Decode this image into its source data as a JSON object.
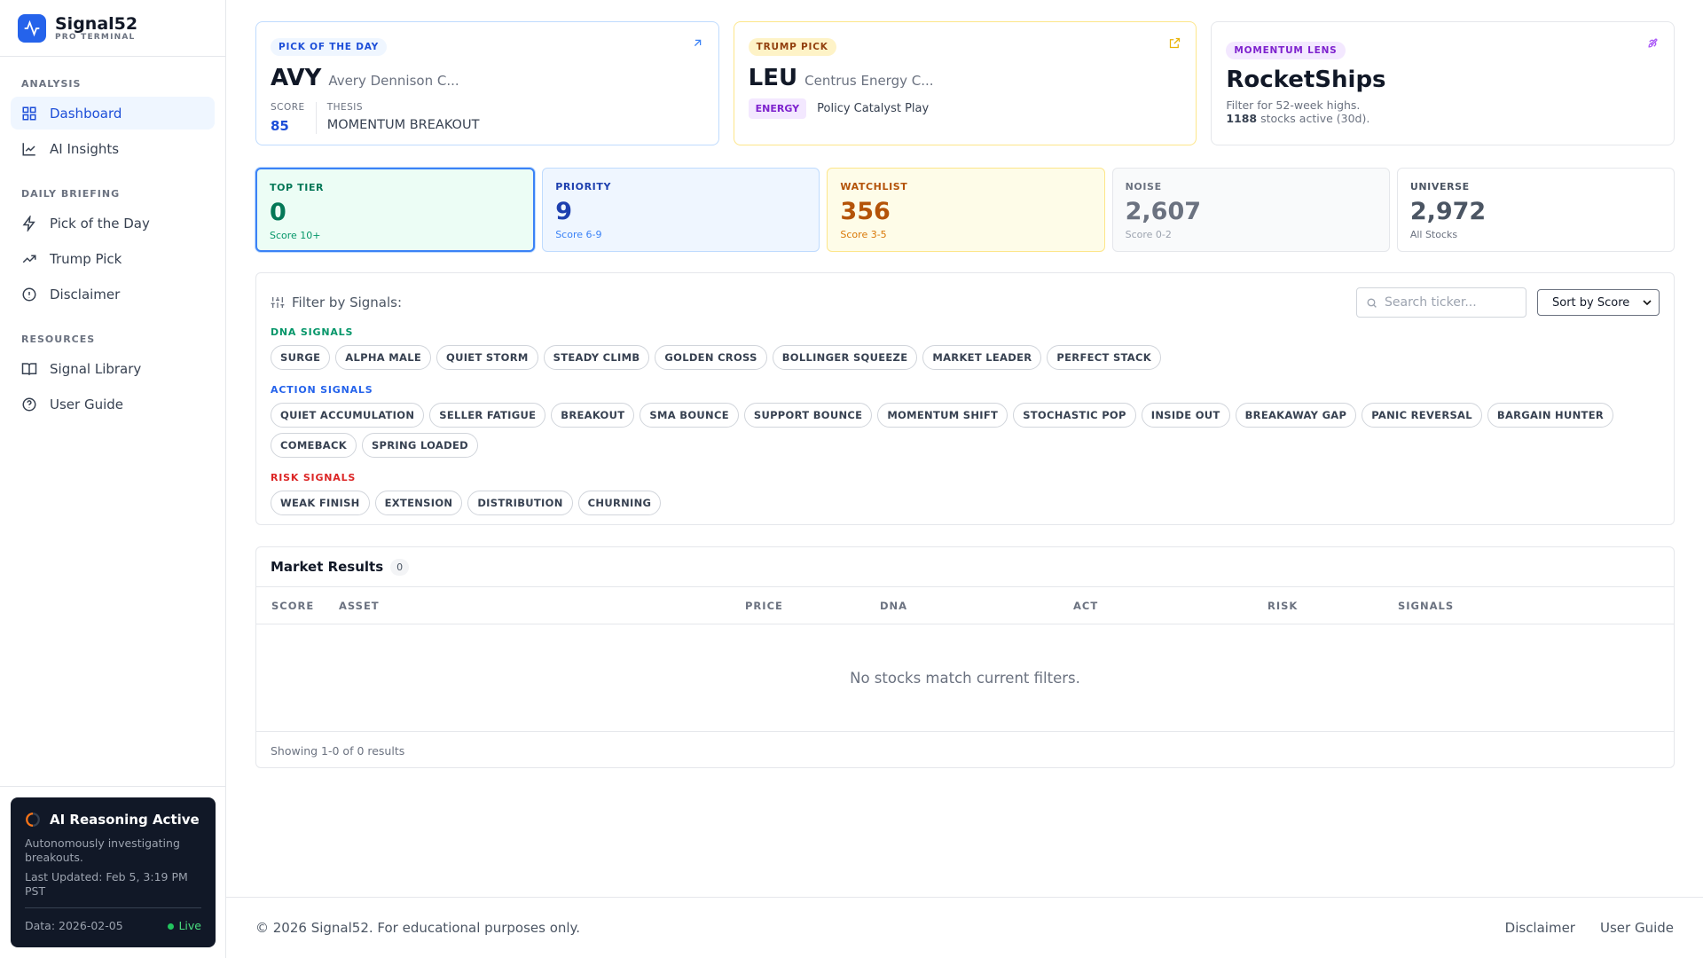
{
  "sidebar": {
    "brand": "Signal52",
    "brand_sub": "PRO TERMINAL",
    "sections": [
      {
        "title": "ANALYSIS",
        "items": [
          "Dashboard",
          "AI Insights"
        ]
      },
      {
        "title": "DAILY BRIEFING",
        "items": [
          "Pick of the Day",
          "Trump Pick",
          "Disclaimer"
        ]
      },
      {
        "title": "RESOURCES",
        "items": [
          "Signal Library",
          "User Guide"
        ]
      }
    ]
  },
  "ai_box": {
    "title": "AI Reasoning Active",
    "description": "Autonomously investigating breakouts.",
    "updated": "Last Updated: Feb 5, 3:19 PM PST",
    "data_date": "Data: 2026-02-05",
    "status": "Live"
  },
  "pick_of_day": {
    "badge": "PICK OF THE DAY",
    "ticker": "AVY",
    "company": "Avery Dennison C...",
    "score_label": "SCORE",
    "score": "85",
    "thesis_label": "THESIS",
    "thesis": "MOMENTUM BREAKOUT"
  },
  "trump_pick": {
    "badge": "TRUMP PICK",
    "ticker": "LEU",
    "company": "Centrus Energy C...",
    "sector": "ENERGY",
    "note": "Policy Catalyst Play"
  },
  "momentum_lens": {
    "badge": "MOMENTUM LENS",
    "title": "RocketShips",
    "description": "Filter for 52-week highs.",
    "count": "1188",
    "count_suffix": "stocks active (30d)."
  },
  "tiers": [
    {
      "label": "TOP TIER",
      "value": "0",
      "sub": "Score 10+"
    },
    {
      "label": "PRIORITY",
      "value": "9",
      "sub": "Score 6-9"
    },
    {
      "label": "WATCHLIST",
      "value": "356",
      "sub": "Score 3-5"
    },
    {
      "label": "NOISE",
      "value": "2,607",
      "sub": "Score 0-2"
    },
    {
      "label": "UNIVERSE",
      "value": "2,972",
      "sub": "All Stocks"
    }
  ],
  "filter": {
    "label": "Filter by Signals:",
    "search_placeholder": "Search ticker...",
    "sort": "Sort by Score",
    "groups": [
      {
        "title": "DNA SIGNALS",
        "chips": [
          "SURGE",
          "ALPHA MALE",
          "QUIET STORM",
          "STEADY CLIMB",
          "GOLDEN CROSS",
          "BOLLINGER SQUEEZE",
          "MARKET LEADER",
          "PERFECT STACK"
        ]
      },
      {
        "title": "ACTION SIGNALS",
        "chips": [
          "QUIET ACCUMULATION",
          "SELLER FATIGUE",
          "BREAKOUT",
          "SMA BOUNCE",
          "SUPPORT BOUNCE",
          "MOMENTUM SHIFT",
          "STOCHASTIC POP",
          "INSIDE OUT",
          "BREAKAWAY GAP",
          "PANIC REVERSAL",
          "BARGAIN HUNTER",
          "COMEBACK",
          "SPRING LOADED"
        ]
      },
      {
        "title": "RISK SIGNALS",
        "chips": [
          "WEAK FINISH",
          "EXTENSION",
          "DISTRIBUTION",
          "CHURNING"
        ]
      }
    ]
  },
  "results": {
    "title": "Market Results",
    "count": "0",
    "columns": [
      "SCORE",
      "ASSET",
      "PRICE",
      "DNA",
      "ACT",
      "RISK",
      "SIGNALS"
    ],
    "empty": "No stocks match current filters.",
    "showing": "Showing 1-0 of 0 results"
  },
  "footer": {
    "copyright": "© 2026 Signal52. For educational purposes only.",
    "links": [
      "Disclaimer",
      "User Guide"
    ]
  }
}
